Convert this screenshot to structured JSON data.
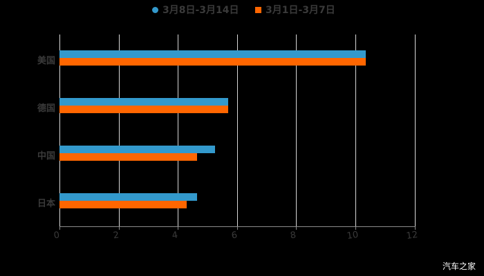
{
  "chart_data": {
    "type": "bar",
    "orientation": "horizontal",
    "title": "",
    "xlabel": "",
    "ylabel": "",
    "categories": [
      "美国",
      "德国",
      "中国",
      "日本"
    ],
    "series": [
      {
        "name": "3月8日-3月14日",
        "color": "#3399cc",
        "values": [
          10.35,
          5.7,
          5.25,
          4.65
        ]
      },
      {
        "name": "3月1日-3月7日",
        "color": "#ff6600",
        "values": [
          10.35,
          5.7,
          4.65,
          4.3
        ]
      }
    ],
    "xlim": [
      0,
      12
    ],
    "xticks": [
      "0",
      "2",
      "4",
      "6",
      "8",
      "10",
      "12"
    ],
    "grid": true,
    "legend_position": "top"
  },
  "legend": {
    "items": [
      {
        "label": "3月8日-3月14日",
        "color": "#3399cc",
        "marker": "circle"
      },
      {
        "label": "3月1日-3月7日",
        "color": "#ff6600",
        "marker": "square"
      }
    ]
  },
  "watermark": "汽车之家"
}
